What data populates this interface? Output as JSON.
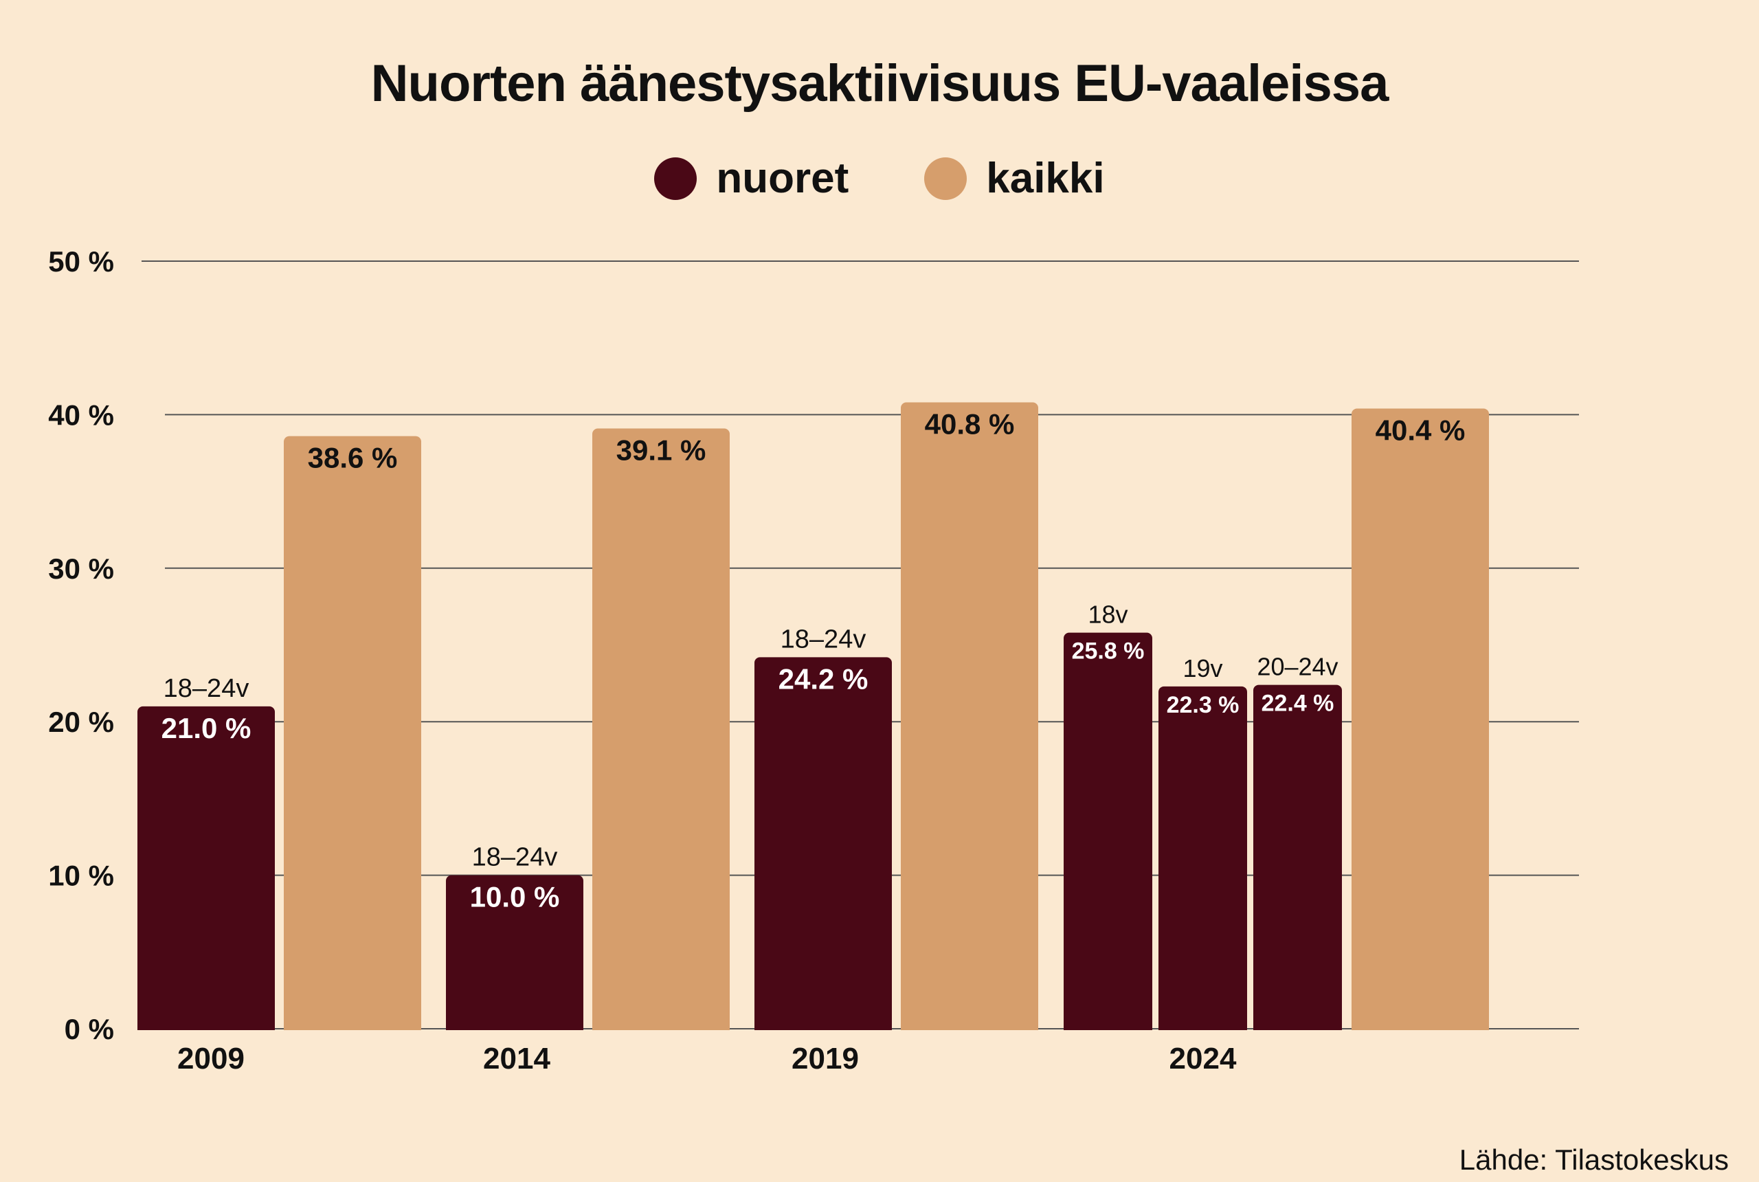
{
  "colors": {
    "nuoret": "#4a0816",
    "kaikki": "#d69e6c",
    "background": "#fbe9d1",
    "grid": "#555555",
    "inside_label": "#ffffff",
    "text": "#111111"
  },
  "source": "Lähde: Tilastokeskus",
  "chart_data": {
    "type": "bar",
    "title": "Nuorten äänestysaktiivisuus EU-vaaleissa",
    "legend": [
      {
        "key": "nuoret",
        "label": "nuoret"
      },
      {
        "key": "kaikki",
        "label": "kaikki"
      }
    ],
    "ylim": [
      0,
      50
    ],
    "yticks": [
      0,
      10,
      20,
      30,
      40,
      50
    ],
    "ytick_labels": [
      "0 %",
      "10 %",
      "20 %",
      "30 %",
      "40 %",
      "50 %"
    ],
    "grid": true,
    "legend_position": "top-center",
    "groups": [
      {
        "category": "2009",
        "bars": [
          {
            "series": "nuoret",
            "group_label": "18–24v",
            "value": 21.0,
            "value_label": "21.0 %"
          },
          {
            "series": "kaikki",
            "group_label": "",
            "value": 38.6,
            "value_label": "38.6 %"
          }
        ]
      },
      {
        "category": "2014",
        "bars": [
          {
            "series": "nuoret",
            "group_label": "18–24v",
            "value": 10.0,
            "value_label": "10.0 %"
          },
          {
            "series": "kaikki",
            "group_label": "",
            "value": 39.1,
            "value_label": "39.1 %"
          }
        ]
      },
      {
        "category": "2019",
        "bars": [
          {
            "series": "nuoret",
            "group_label": "18–24v",
            "value": 24.2,
            "value_label": "24.2 %"
          },
          {
            "series": "kaikki",
            "group_label": "",
            "value": 40.8,
            "value_label": "40.8 %"
          }
        ]
      },
      {
        "category": "2024",
        "bars": [
          {
            "series": "nuoret",
            "group_label": "18v",
            "value": 25.8,
            "value_label": "25.8 %"
          },
          {
            "series": "nuoret",
            "group_label": "19v",
            "value": 22.3,
            "value_label": "22.3 %"
          },
          {
            "series": "nuoret",
            "group_label": "20–24v",
            "value": 22.4,
            "value_label": "22.4 %"
          },
          {
            "series": "kaikki",
            "group_label": "",
            "value": 40.4,
            "value_label": "40.4 %"
          }
        ]
      }
    ]
  }
}
